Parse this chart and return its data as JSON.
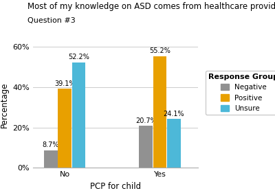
{
  "title_line1": "Most of my knowledge on ASD comes from healthcare providers",
  "title_line2": "Question #3",
  "xlabel": "PCP for child",
  "ylabel": "Percentage",
  "groups": [
    "No",
    "Yes"
  ],
  "response_groups": [
    "Negative",
    "Positive",
    "Unsure"
  ],
  "values": {
    "No": [
      8.7,
      39.1,
      52.2
    ],
    "Yes": [
      20.7,
      55.2,
      24.1
    ]
  },
  "colors": {
    "Negative": "#919191",
    "Positive": "#E8A000",
    "Unsure": "#4DB8D8"
  },
  "legend_title": "Response Group",
  "ylim": [
    0,
    62
  ],
  "yticks": [
    0,
    20,
    40,
    60
  ],
  "ytick_labels": [
    "0%",
    "20%",
    "40%",
    "60%"
  ],
  "bar_width": 0.22,
  "background_color": "#FFFFFF",
  "grid_color": "#CCCCCC",
  "title_fontsize": 8.5,
  "subtitle_fontsize": 8.0,
  "axis_label_fontsize": 8.5,
  "tick_fontsize": 8.0,
  "legend_fontsize": 7.5,
  "legend_title_fontsize": 8.0,
  "annotation_fontsize": 7.0
}
